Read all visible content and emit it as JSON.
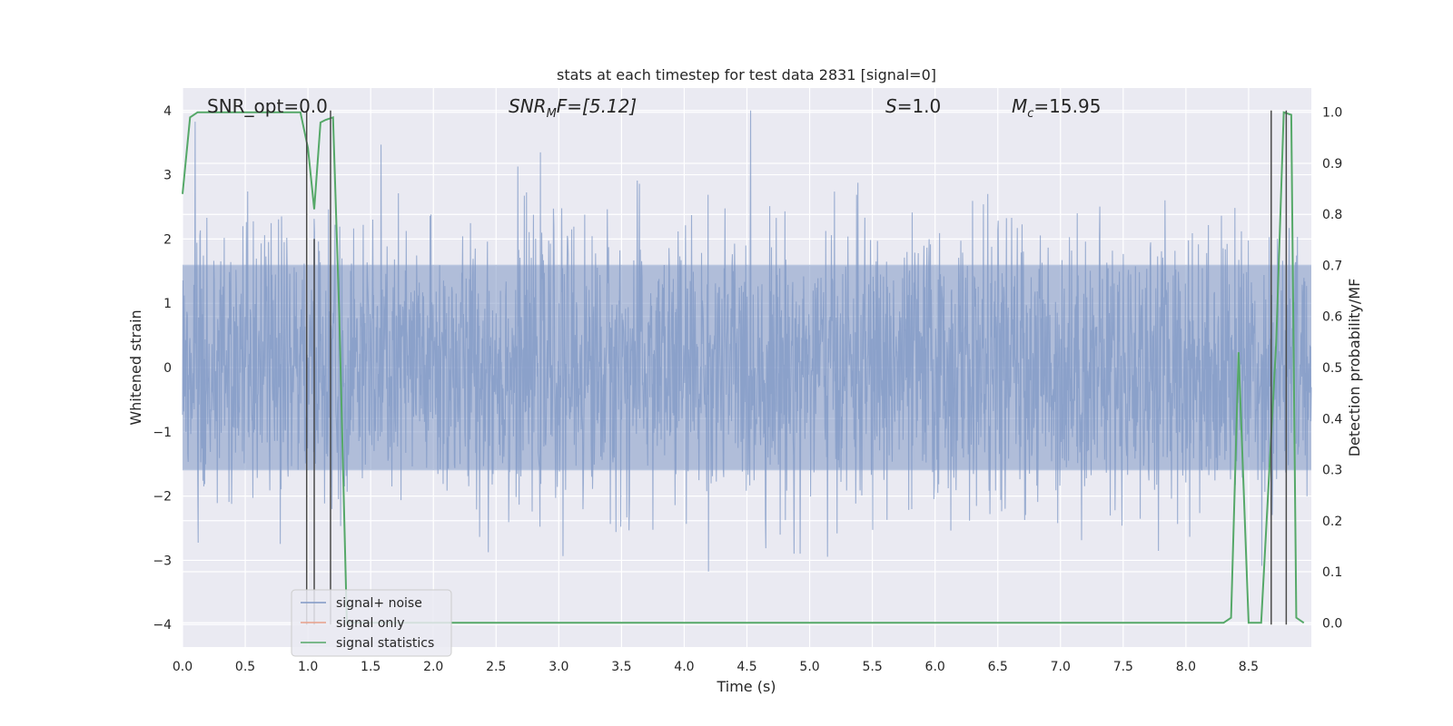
{
  "chart_data": {
    "type": "line",
    "title": "stats at each timestep for test data 2831 [signal=0]",
    "xlabel": "Time (s)",
    "ylabel": "Whitened strain",
    "ylabel_right": "Detection probability/MF",
    "xlim": [
      0.0,
      9.0
    ],
    "ylim": [
      -4.35,
      4.35
    ],
    "ylim_right": [
      -0.0475,
      1.0475
    ],
    "xticks": [
      "0.0",
      "0.5",
      "1.0",
      "1.5",
      "2.0",
      "2.5",
      "3.0",
      "3.5",
      "4.0",
      "4.5",
      "5.0",
      "5.5",
      "6.0",
      "6.5",
      "7.0",
      "7.5",
      "8.0",
      "8.5"
    ],
    "xtick_values": [
      0.0,
      0.5,
      1.0,
      1.5,
      2.0,
      2.5,
      3.0,
      3.5,
      4.0,
      4.5,
      5.0,
      5.5,
      6.0,
      6.5,
      7.0,
      7.5,
      8.0,
      8.5
    ],
    "yticks": [
      "4",
      "3",
      "2",
      "1",
      "0",
      "−1",
      "−2",
      "−3",
      "−4"
    ],
    "ytick_values": [
      4,
      3,
      2,
      1,
      0,
      -1,
      -2,
      -3,
      -4
    ],
    "yticks_right": [
      "1.0",
      "0.9",
      "0.8",
      "0.7",
      "0.6",
      "0.5",
      "0.4",
      "0.3",
      "0.2",
      "0.1",
      "0.0"
    ],
    "ytick_values_right": [
      1.0,
      0.9,
      0.8,
      0.7,
      0.6,
      0.5,
      0.4,
      0.3,
      0.2,
      0.1,
      0.0
    ],
    "grid": true,
    "legend_position": "lower-left",
    "annotations": {
      "snr_opt": "SNR_opt=0.0",
      "snr_mf_main": "SNR",
      "snr_mf_sub": "M",
      "snr_mf_tail": "F=[5.12]",
      "s": "S",
      "s_value": "=1.0",
      "mc": "M",
      "mc_sub": "c",
      "mc_value": "=15.95"
    },
    "series": [
      {
        "name": "signal+ noise",
        "color": "#7f98c5",
        "kind": "noise",
        "envelope_percentile": 1.6,
        "max_abs": 4.0,
        "x_range": [
          0.0,
          9.0
        ]
      },
      {
        "name": "signal only",
        "color": "#e8a08a",
        "values": []
      },
      {
        "name": "signal statistics",
        "color": "#55a868",
        "axis": "right",
        "x": [
          0.0,
          0.06,
          0.12,
          0.3,
          0.5,
          0.7,
          0.9,
          0.94,
          1.0,
          1.05,
          1.1,
          1.14,
          1.2,
          1.25,
          1.31,
          1.4,
          2.0,
          3.0,
          4.0,
          5.0,
          6.0,
          7.0,
          8.0,
          8.3,
          8.36,
          8.42,
          8.5,
          8.6,
          8.72,
          8.78,
          8.84,
          8.88,
          8.94
        ],
        "values": [
          0.84,
          0.99,
          1.0,
          1.0,
          1.0,
          1.0,
          1.0,
          1.0,
          0.93,
          0.81,
          0.98,
          0.985,
          0.99,
          0.6,
          0.0,
          0.0,
          0.0,
          0.0,
          0.0,
          0.0,
          0.0,
          0.0,
          0.0,
          0.0,
          0.01,
          0.53,
          0.0,
          0.0,
          0.55,
          1.0,
          0.995,
          0.01,
          0.0
        ]
      }
    ],
    "vertical_lines": {
      "color": "#4a4a4a",
      "lines": [
        {
          "x": 0.99,
          "y_top": 4.0
        },
        {
          "x": 1.05,
          "y_top": 2.0
        },
        {
          "x": 1.18,
          "y_top": 4.0
        },
        {
          "x": 8.68,
          "y_top": 4.0
        },
        {
          "x": 8.8,
          "y_top": 4.0
        }
      ],
      "y_bottom": -4.0
    }
  }
}
